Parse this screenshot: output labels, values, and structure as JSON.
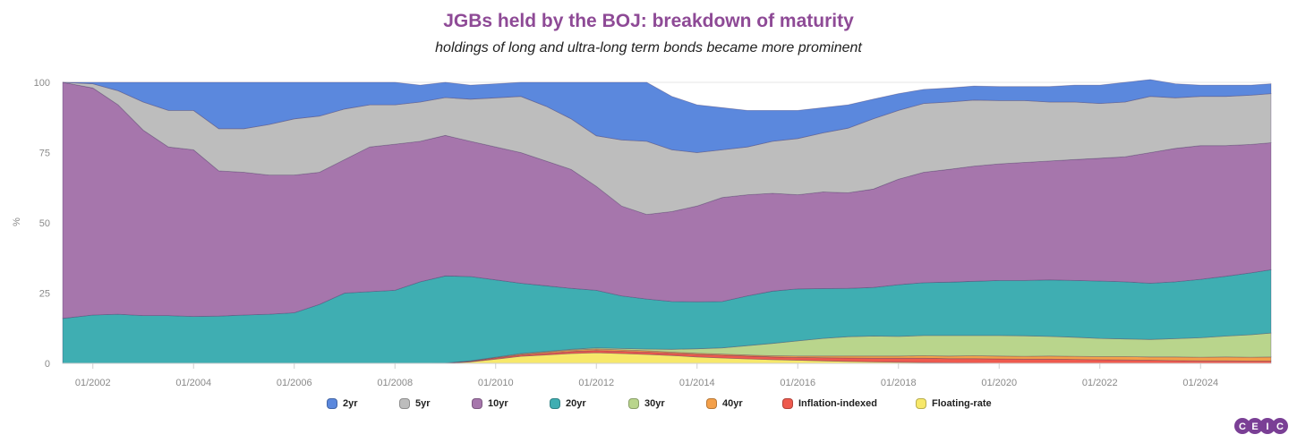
{
  "chart_data": {
    "type": "area",
    "stacked": true,
    "title": "JGBs held by the BOJ: breakdown of maturity",
    "subtitle": "holdings of long and ultra-long term bonds became more prominent",
    "ylabel": "%",
    "ylim": [
      0,
      100
    ],
    "yticks": [
      "0",
      "25",
      "50",
      "75",
      "100"
    ],
    "xlim": [
      2001.4,
      2025.4
    ],
    "xticks": [
      {
        "x": 2002,
        "label": "01/2002"
      },
      {
        "x": 2004,
        "label": "01/2004"
      },
      {
        "x": 2006,
        "label": "01/2006"
      },
      {
        "x": 2008,
        "label": "01/2008"
      },
      {
        "x": 2010,
        "label": "01/2010"
      },
      {
        "x": 2012,
        "label": "01/2012"
      },
      {
        "x": 2014,
        "label": "01/2014"
      },
      {
        "x": 2016,
        "label": "01/2016"
      },
      {
        "x": 2018,
        "label": "01/2018"
      },
      {
        "x": 2020,
        "label": "01/2020"
      },
      {
        "x": 2022,
        "label": "01/2022"
      },
      {
        "x": 2024,
        "label": "01/2024"
      }
    ],
    "legend_position": "bottom",
    "x": [
      2001.4,
      2002.0,
      2002.5,
      2003.0,
      2003.5,
      2004.0,
      2004.5,
      2005.0,
      2005.5,
      2006.0,
      2006.5,
      2007.0,
      2007.5,
      2008.0,
      2008.5,
      2009.0,
      2009.5,
      2010.0,
      2010.5,
      2011.0,
      2011.5,
      2012.0,
      2012.5,
      2013.0,
      2013.5,
      2014.0,
      2014.5,
      2015.0,
      2015.5,
      2016.0,
      2016.5,
      2017.0,
      2017.5,
      2018.0,
      2018.5,
      2019.0,
      2019.5,
      2020.0,
      2020.5,
      2021.0,
      2021.5,
      2022.0,
      2022.5,
      2023.0,
      2023.5,
      2024.0,
      2024.5,
      2025.0,
      2025.4
    ],
    "series": [
      {
        "name": "Floating-rate",
        "color": "#f7e86a",
        "values": [
          0,
          0,
          0,
          0,
          0,
          0,
          0,
          0,
          0,
          0,
          0,
          0,
          0,
          0,
          0,
          0,
          0.5,
          1.5,
          2.5,
          3.0,
          3.5,
          3.8,
          3.5,
          3.2,
          2.8,
          2.3,
          1.9,
          1.6,
          1.3,
          1.1,
          0.9,
          0.7,
          0.5,
          0.4,
          0.3,
          0.2,
          0.1,
          0,
          0,
          0,
          0,
          0,
          0,
          0,
          0,
          0,
          0,
          0,
          0
        ]
      },
      {
        "name": "Inflation-indexed",
        "color": "#ee5a4e",
        "values": [
          0,
          0,
          0,
          0,
          0,
          0,
          0,
          0,
          0,
          0,
          0,
          0,
          0,
          0,
          0,
          0.1,
          0.2,
          0.4,
          0.5,
          0.6,
          0.7,
          0.8,
          0.8,
          0.8,
          0.8,
          0.9,
          1.0,
          1.0,
          1.0,
          1.0,
          1.1,
          1.2,
          1.3,
          1.4,
          1.5,
          1.5,
          1.6,
          1.6,
          1.5,
          1.5,
          1.4,
          1.3,
          1.2,
          1.1,
          1.0,
          0.9,
          0.9,
          0.8,
          0.8
        ]
      },
      {
        "name": "40yr",
        "color": "#f4a04a",
        "values": [
          0,
          0,
          0,
          0,
          0,
          0,
          0,
          0,
          0,
          0,
          0,
          0,
          0,
          0,
          0,
          0,
          0.1,
          0.2,
          0.3,
          0.4,
          0.5,
          0.5,
          0.5,
          0.5,
          0.4,
          0.4,
          0.4,
          0.4,
          0.4,
          0.5,
          0.6,
          0.7,
          0.8,
          0.8,
          0.9,
          0.9,
          1.0,
          1.0,
          1.0,
          1.1,
          1.1,
          1.1,
          1.2,
          1.2,
          1.3,
          1.3,
          1.4,
          1.4,
          1.5
        ]
      },
      {
        "name": "30yr",
        "color": "#b9d58c",
        "values": [
          0,
          0,
          0,
          0,
          0,
          0,
          0,
          0,
          0,
          0,
          0,
          0,
          0,
          0,
          0,
          0,
          0.1,
          0.1,
          0.2,
          0.2,
          0.3,
          0.4,
          0.5,
          0.6,
          1.0,
          1.6,
          2.2,
          3.3,
          4.4,
          5.4,
          6.3,
          6.9,
          7.1,
          7.0,
          7.2,
          7.3,
          7.2,
          7.3,
          7.3,
          7.0,
          6.8,
          6.5,
          6.3,
          6.2,
          6.5,
          6.9,
          7.4,
          8.0,
          8.5
        ]
      },
      {
        "name": "20yr",
        "color": "#3faeb2",
        "values": [
          16.0,
          17.2,
          17.5,
          17.0,
          17.0,
          16.7,
          16.8,
          17.2,
          17.5,
          18.0,
          21.0,
          25.0,
          25.5,
          26.0,
          29.0,
          31.0,
          30.0,
          27.5,
          25.0,
          23.4,
          21.7,
          20.5,
          18.7,
          17.8,
          17.0,
          16.7,
          16.5,
          17.7,
          18.6,
          18.5,
          17.7,
          17.2,
          17.3,
          18.4,
          18.8,
          19.0,
          19.3,
          19.6,
          19.7,
          20.1,
          20.2,
          20.4,
          20.3,
          20.0,
          20.2,
          20.8,
          21.3,
          22.0,
          22.5
        ]
      },
      {
        "name": "10yr",
        "color": "#a676ac",
        "values": [
          84.0,
          80.8,
          74.5,
          66.0,
          60.0,
          59.3,
          51.7,
          50.8,
          49.5,
          49.0,
          47.0,
          47.5,
          51.5,
          52.0,
          50.0,
          50.0,
          48.1,
          47.3,
          46.5,
          44.4,
          42.3,
          37.0,
          32.0,
          30.1,
          32.0,
          34.1,
          37.0,
          36.0,
          34.8,
          33.5,
          34.4,
          34.0,
          35.0,
          37.5,
          39.3,
          40.1,
          41.0,
          41.5,
          42.0,
          42.3,
          43.0,
          43.7,
          44.5,
          46.5,
          47.5,
          47.6,
          46.5,
          45.7,
          45.2
        ]
      },
      {
        "name": "5yr",
        "color": "#bdbdbd",
        "values": [
          0,
          1.5,
          5.0,
          10.0,
          13.0,
          14.0,
          15.0,
          15.5,
          18.0,
          20.0,
          20.0,
          18.0,
          15.0,
          14.0,
          14.0,
          13.5,
          15.0,
          17.5,
          20.0,
          19.5,
          18.0,
          18.0,
          23.5,
          26.0,
          22.0,
          19.0,
          17.0,
          17.0,
          18.5,
          20.0,
          21.0,
          23.0,
          25.0,
          24.5,
          24.5,
          24.0,
          23.5,
          22.5,
          22.0,
          21.0,
          20.5,
          19.5,
          19.5,
          20.0,
          18.0,
          17.5,
          17.5,
          17.5,
          17.5
        ]
      },
      {
        "name": "2yr",
        "color": "#5b88dd",
        "values": [
          0,
          0.5,
          3.0,
          7.0,
          10.0,
          10.0,
          16.5,
          16.5,
          15.0,
          13.0,
          12.0,
          9.5,
          8.0,
          8.0,
          6.0,
          5.4,
          5.0,
          5.0,
          5.0,
          8.5,
          13.0,
          19.0,
          20.5,
          21.0,
          19.0,
          17.0,
          15.0,
          13.0,
          11.0,
          10.0,
          9.0,
          8.3,
          7.0,
          6.0,
          5.0,
          5.0,
          5.0,
          5.0,
          5.0,
          5.5,
          6.0,
          6.5,
          7.0,
          6.0,
          5.0,
          4.0,
          4.0,
          3.6,
          3.5
        ]
      }
    ],
    "legend": [
      "2yr",
      "5yr",
      "10yr",
      "20yr",
      "30yr",
      "40yr",
      "Inflation-indexed",
      "Floating-rate"
    ]
  },
  "logo": {
    "text": "CEIC",
    "letters": [
      "C",
      "E",
      "I",
      "C"
    ],
    "color": "#7a3f95"
  }
}
